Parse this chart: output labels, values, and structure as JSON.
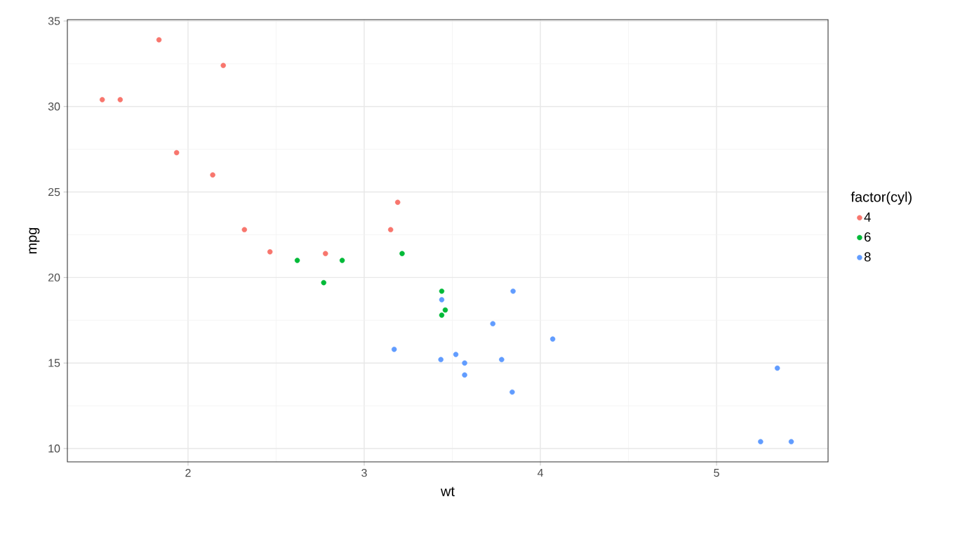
{
  "chart_data": {
    "type": "scatter",
    "xlabel": "wt",
    "ylabel": "mpg",
    "legend_title": "factor(cyl)",
    "xlim": [
      1.315,
      5.633
    ],
    "ylim": [
      9.22,
      35.08
    ],
    "xticks": [
      2,
      3,
      4,
      5
    ],
    "yticks": [
      10,
      15,
      20,
      25,
      30,
      35
    ],
    "grid": true,
    "legend": "right",
    "marker": "circle",
    "series": [
      {
        "name": "4",
        "color": "#F8766D",
        "x": [
          2.32,
          3.19,
          3.15,
          2.2,
          1.615,
          1.835,
          2.465,
          1.935,
          2.14,
          1.513,
          2.78
        ],
        "values": [
          22.8,
          24.4,
          22.8,
          32.4,
          30.4,
          33.9,
          21.5,
          27.3,
          26.0,
          30.4,
          21.4
        ]
      },
      {
        "name": "6",
        "color": "#00BA38",
        "x": [
          2.62,
          2.875,
          3.215,
          3.46,
          3.44,
          3.44,
          2.77
        ],
        "values": [
          21.0,
          21.0,
          21.4,
          18.1,
          19.2,
          17.8,
          19.7
        ]
      },
      {
        "name": "8",
        "color": "#619CFF",
        "x": [
          3.44,
          3.57,
          4.07,
          3.73,
          3.78,
          5.25,
          5.424,
          5.345,
          3.52,
          3.435,
          3.84,
          3.845,
          3.17,
          3.57
        ],
        "values": [
          18.7,
          14.3,
          16.4,
          17.3,
          15.2,
          10.4,
          10.4,
          14.7,
          15.5,
          15.2,
          13.3,
          19.2,
          15.8,
          15.0
        ]
      }
    ]
  }
}
